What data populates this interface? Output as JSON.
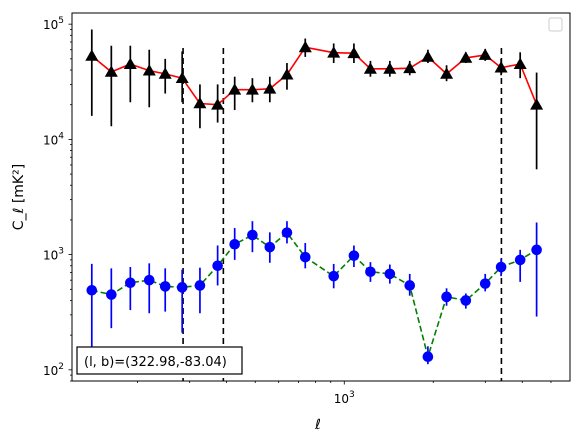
{
  "chart_data": {
    "type": "line",
    "xscale": "log",
    "yscale": "log",
    "xlim": [
      120,
      5800
    ],
    "ylim": [
      80,
      125000
    ],
    "xlabel": "ℓ",
    "ylabel": "C_ℓ [mK²]",
    "x_ticks": [
      {
        "value": 1000,
        "base": "10",
        "exp": "3"
      }
    ],
    "y_ticks": [
      {
        "value": 100,
        "base": "10",
        "exp": "2"
      },
      {
        "value": 1000,
        "base": "10",
        "exp": "3"
      },
      {
        "value": 10000,
        "base": "10",
        "exp": "4"
      },
      {
        "value": 100000,
        "base": "10",
        "exp": "5"
      }
    ],
    "legend": {
      "placement": "top-right",
      "entries": []
    },
    "annotation": "(l, b)=(322.98,-83.04)",
    "vlines": [
      285,
      390,
      3400
    ],
    "series": [
      {
        "color": "#ff0000",
        "marker": "triangle",
        "marker_color": "#000000",
        "linestyle": "solid",
        "x": [
          140,
          163,
          189,
          219,
          248,
          283,
          325,
          373,
          426,
          489,
          560,
          640,
          738,
          921,
          1078,
          1226,
          1426,
          1665,
          1918,
          2218,
          2577,
          2997,
          3392,
          3935,
          4472
        ],
        "y": [
          53000,
          38500,
          45000,
          39500,
          37000,
          34000,
          20500,
          20000,
          27000,
          27000,
          27500,
          36500,
          63000,
          56500,
          56000,
          41000,
          41000,
          41500,
          52000,
          37000,
          51000,
          54000,
          42000,
          45000,
          20000
        ],
        "y_low": [
          16000,
          13000,
          21000,
          19000,
          25000,
          21000,
          12500,
          14000,
          18000,
          21000,
          21000,
          27000,
          52000,
          46000,
          46000,
          35000,
          35000,
          36000,
          46000,
          32000,
          46000,
          48000,
          36000,
          34000,
          5500
        ],
        "y_high": [
          90000,
          65000,
          65000,
          60000,
          50000,
          58000,
          30000,
          30000,
          35000,
          34000,
          35000,
          46000,
          75000,
          68000,
          68000,
          48000,
          48000,
          48000,
          60000,
          44000,
          57000,
          61000,
          50000,
          57000,
          38000
        ]
      },
      {
        "color": "#008000",
        "marker": "circle",
        "marker_color": "#0000ff",
        "linestyle": "dashed",
        "x": [
          140,
          163,
          189,
          219,
          248,
          283,
          325,
          373,
          426,
          489,
          560,
          640,
          738,
          921,
          1078,
          1226,
          1426,
          1665,
          1918,
          2218,
          2577,
          2997,
          3392,
          3935,
          4472
        ],
        "y": [
          490,
          450,
          570,
          600,
          530,
          520,
          540,
          800,
          1230,
          1480,
          1160,
          1550,
          950,
          650,
          980,
          710,
          680,
          540,
          130,
          430,
          400,
          560,
          780,
          900,
          1100
        ],
        "y_low": [
          100,
          230,
          330,
          310,
          320,
          210,
          310,
          540,
          900,
          1050,
          850,
          1250,
          760,
          510,
          780,
          580,
          560,
          440,
          112,
          360,
          340,
          480,
          650,
          580,
          290
        ],
        "y_high": [
          830,
          760,
          780,
          840,
          760,
          740,
          770,
          1200,
          1700,
          1950,
          1560,
          1950,
          1260,
          830,
          1200,
          860,
          820,
          680,
          160,
          510,
          460,
          680,
          920,
          1100,
          1900
        ]
      }
    ]
  }
}
